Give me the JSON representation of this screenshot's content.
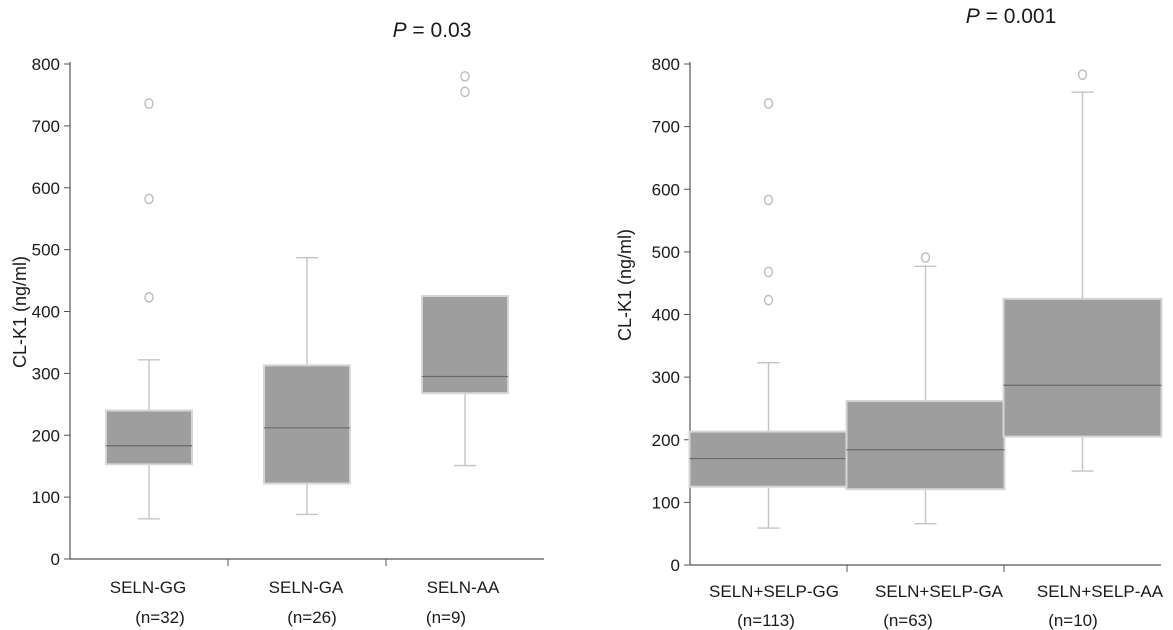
{
  "colors": {
    "box_fill": "#9e9e9e",
    "box_edge": "#d6d6d6",
    "median": "#6a6a6a",
    "whisker": "#c4c4c4",
    "outlier": "#bdbdbd",
    "axis": "#555555"
  },
  "chart_data": [
    {
      "type": "box",
      "title_italic": "P",
      "title_rest": " = 0.03",
      "ylabel": "CL-K1 (ng/ml)",
      "ylim": [
        0,
        800
      ],
      "yticks": [
        "0",
        "100",
        "200",
        "300",
        "400",
        "500",
        "600",
        "700",
        "800"
      ],
      "categories": [
        "SELN-GG",
        "SELN-GA",
        "SELN-AA"
      ],
      "counts": [
        "(n=32)",
        "(n=26)",
        "(n=9)"
      ],
      "boxes": [
        {
          "whisker_low": 65,
          "q1": 153,
          "median": 183,
          "q3": 240,
          "whisker_high": 322,
          "outliers": [
            423,
            582,
            736
          ]
        },
        {
          "whisker_low": 72,
          "q1": 122,
          "median": 212,
          "q3": 313,
          "whisker_high": 487,
          "outliers": []
        },
        {
          "whisker_low": 151,
          "q1": 268,
          "median": 295,
          "q3": 425,
          "whisker_high": 425,
          "outliers": [
            755,
            780
          ]
        }
      ]
    },
    {
      "type": "box",
      "title_italic": "P",
      "title_rest": " = 0.001",
      "ylabel": "CL-K1 (ng/ml)",
      "ylim": [
        0,
        800
      ],
      "yticks": [
        "0",
        "100",
        "200",
        "300",
        "400",
        "500",
        "600",
        "700",
        "800"
      ],
      "categories": [
        "SELN+SELP-GG",
        "SELN+SELP-GA",
        "SELN+SELP-AA"
      ],
      "counts": [
        "(n=113)",
        "(n=63)",
        "(n=10)"
      ],
      "boxes": [
        {
          "whisker_low": 59,
          "q1": 125,
          "median": 170,
          "q3": 213,
          "whisker_high": 323,
          "outliers": [
            423,
            468,
            583,
            737
          ]
        },
        {
          "whisker_low": 66,
          "q1": 121,
          "median": 184,
          "q3": 262,
          "whisker_high": 477,
          "outliers": [
            491
          ]
        },
        {
          "whisker_low": 150,
          "q1": 205,
          "median": 287,
          "q3": 425,
          "whisker_high": 755,
          "outliers": [
            783
          ]
        }
      ]
    }
  ]
}
